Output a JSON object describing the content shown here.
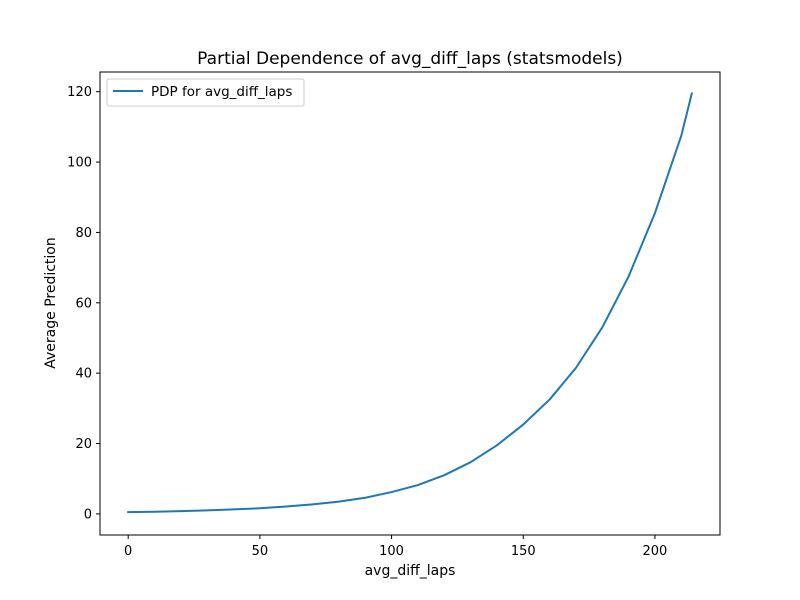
{
  "chart_data": {
    "type": "line",
    "title": "Partial Dependence of avg_diff_laps (statsmodels)",
    "xlabel": "avg_diff_laps",
    "ylabel": "Average Prediction",
    "xlim": [
      -10.7,
      224.7
    ],
    "ylim": [
      -6.0,
      125.6
    ],
    "xticks": [
      0,
      50,
      100,
      150,
      200
    ],
    "yticks": [
      0,
      20,
      40,
      60,
      80,
      100,
      120
    ],
    "grid": false,
    "legend_position": "top-left",
    "series": [
      {
        "name": "PDP for avg_diff_laps",
        "color": "#1f77b4",
        "x": [
          0,
          10,
          20,
          30,
          40,
          50,
          60,
          70,
          80,
          90,
          100,
          110,
          120,
          130,
          140,
          150,
          160,
          170,
          180,
          190,
          200,
          210,
          214
        ],
        "y": [
          0.5,
          0.6,
          0.8,
          1.0,
          1.3,
          1.6,
          2.1,
          2.7,
          3.5,
          4.6,
          6.2,
          8.2,
          11.0,
          14.7,
          19.5,
          25.4,
          32.5,
          41.5,
          53.0,
          67.5,
          85.5,
          107.5,
          119.5
        ]
      }
    ]
  }
}
